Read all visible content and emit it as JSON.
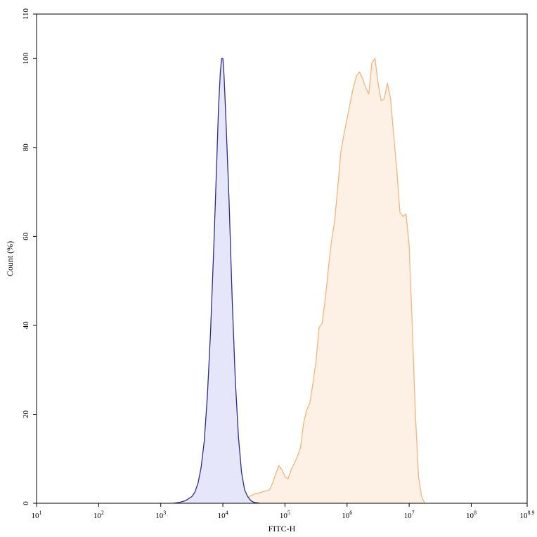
{
  "chart_data": {
    "type": "area",
    "title": "",
    "xlabel": "FITC-H",
    "ylabel": "Count (%)",
    "x_scale": "log10",
    "xlim": [
      1,
      8.9
    ],
    "ylim": [
      0,
      110
    ],
    "x_ticks": [
      {
        "value": 1,
        "base": "10",
        "exp": "1"
      },
      {
        "value": 2,
        "base": "10",
        "exp": "2"
      },
      {
        "value": 3,
        "base": "10",
        "exp": "3"
      },
      {
        "value": 4,
        "base": "10",
        "exp": "4"
      },
      {
        "value": 5,
        "base": "10",
        "exp": "5"
      },
      {
        "value": 6,
        "base": "10",
        "exp": "6"
      },
      {
        "value": 7,
        "base": "10",
        "exp": "7"
      },
      {
        "value": 8,
        "base": "10",
        "exp": "8"
      },
      {
        "value": 8.9,
        "base": "10",
        "exp": "8.9"
      }
    ],
    "y_ticks": [
      {
        "value": 0,
        "label": "0"
      },
      {
        "value": 20,
        "label": "20"
      },
      {
        "value": 40,
        "label": "40"
      },
      {
        "value": 60,
        "label": "60"
      },
      {
        "value": 80,
        "label": "80"
      },
      {
        "value": 100,
        "label": "100"
      },
      {
        "value": 110,
        "label": "110"
      }
    ],
    "grid": false,
    "series": [
      {
        "stroke": "#f0b680",
        "fill": "#fdf1e6",
        "points": [
          [
            3.3,
            0
          ],
          [
            3.5,
            0.2
          ],
          [
            3.6,
            0.8
          ],
          [
            3.7,
            0.2
          ],
          [
            3.8,
            0.5
          ],
          [
            3.9,
            1.0
          ],
          [
            4.0,
            0.6
          ],
          [
            4.1,
            0.4
          ],
          [
            4.2,
            1.0
          ],
          [
            4.3,
            1.8
          ],
          [
            4.4,
            1.4
          ],
          [
            4.5,
            2.0
          ],
          [
            4.6,
            2.4
          ],
          [
            4.7,
            2.8
          ],
          [
            4.75,
            3.0
          ],
          [
            4.8,
            4.5
          ],
          [
            4.85,
            6.5
          ],
          [
            4.9,
            8.5
          ],
          [
            4.95,
            7.5
          ],
          [
            5.0,
            6.0
          ],
          [
            5.05,
            5.5
          ],
          [
            5.1,
            7.5
          ],
          [
            5.2,
            10.5
          ],
          [
            5.25,
            12.5
          ],
          [
            5.3,
            18.0
          ],
          [
            5.35,
            21.0
          ],
          [
            5.4,
            22.5
          ],
          [
            5.45,
            27.0
          ],
          [
            5.5,
            32.0
          ],
          [
            5.55,
            39.5
          ],
          [
            5.6,
            40.5
          ],
          [
            5.65,
            46.0
          ],
          [
            5.7,
            53.0
          ],
          [
            5.75,
            59.0
          ],
          [
            5.8,
            63.5
          ],
          [
            5.85,
            71.0
          ],
          [
            5.9,
            79.0
          ],
          [
            5.95,
            83.0
          ],
          [
            6.0,
            86.5
          ],
          [
            6.05,
            90.0
          ],
          [
            6.1,
            93.5
          ],
          [
            6.15,
            96.0
          ],
          [
            6.2,
            97.0
          ],
          [
            6.25,
            95.5
          ],
          [
            6.3,
            93.5
          ],
          [
            6.35,
            92.0
          ],
          [
            6.4,
            99.0
          ],
          [
            6.45,
            100.0
          ],
          [
            6.5,
            94.5
          ],
          [
            6.55,
            90.5
          ],
          [
            6.6,
            91.0
          ],
          [
            6.65,
            94.5
          ],
          [
            6.7,
            91.0
          ],
          [
            6.75,
            83.0
          ],
          [
            6.8,
            75.0
          ],
          [
            6.85,
            65.5
          ],
          [
            6.9,
            64.5
          ],
          [
            6.95,
            65.0
          ],
          [
            7.0,
            58.0
          ],
          [
            7.05,
            40.0
          ],
          [
            7.1,
            20.0
          ],
          [
            7.15,
            6.0
          ],
          [
            7.2,
            1.5
          ],
          [
            7.25,
            0
          ]
        ]
      },
      {
        "stroke": "#2c2c8c",
        "fill": "#e6e6fb",
        "points": [
          [
            3.2,
            0
          ],
          [
            3.3,
            0.2
          ],
          [
            3.4,
            0.6
          ],
          [
            3.5,
            1.5
          ],
          [
            3.55,
            2.5
          ],
          [
            3.6,
            4.5
          ],
          [
            3.65,
            8.0
          ],
          [
            3.7,
            14.0
          ],
          [
            3.75,
            24.0
          ],
          [
            3.8,
            38.0
          ],
          [
            3.85,
            56.0
          ],
          [
            3.9,
            76.0
          ],
          [
            3.93,
            89.0
          ],
          [
            3.96,
            97.0
          ],
          [
            3.98,
            100.0
          ],
          [
            4.0,
            100.0
          ],
          [
            4.02,
            96.0
          ],
          [
            4.05,
            86.0
          ],
          [
            4.1,
            68.0
          ],
          [
            4.15,
            46.0
          ],
          [
            4.2,
            28.0
          ],
          [
            4.25,
            15.0
          ],
          [
            4.3,
            7.0
          ],
          [
            4.35,
            3.0
          ],
          [
            4.4,
            1.5
          ],
          [
            4.45,
            0.6
          ],
          [
            4.5,
            0.2
          ],
          [
            4.6,
            0
          ]
        ]
      }
    ]
  }
}
